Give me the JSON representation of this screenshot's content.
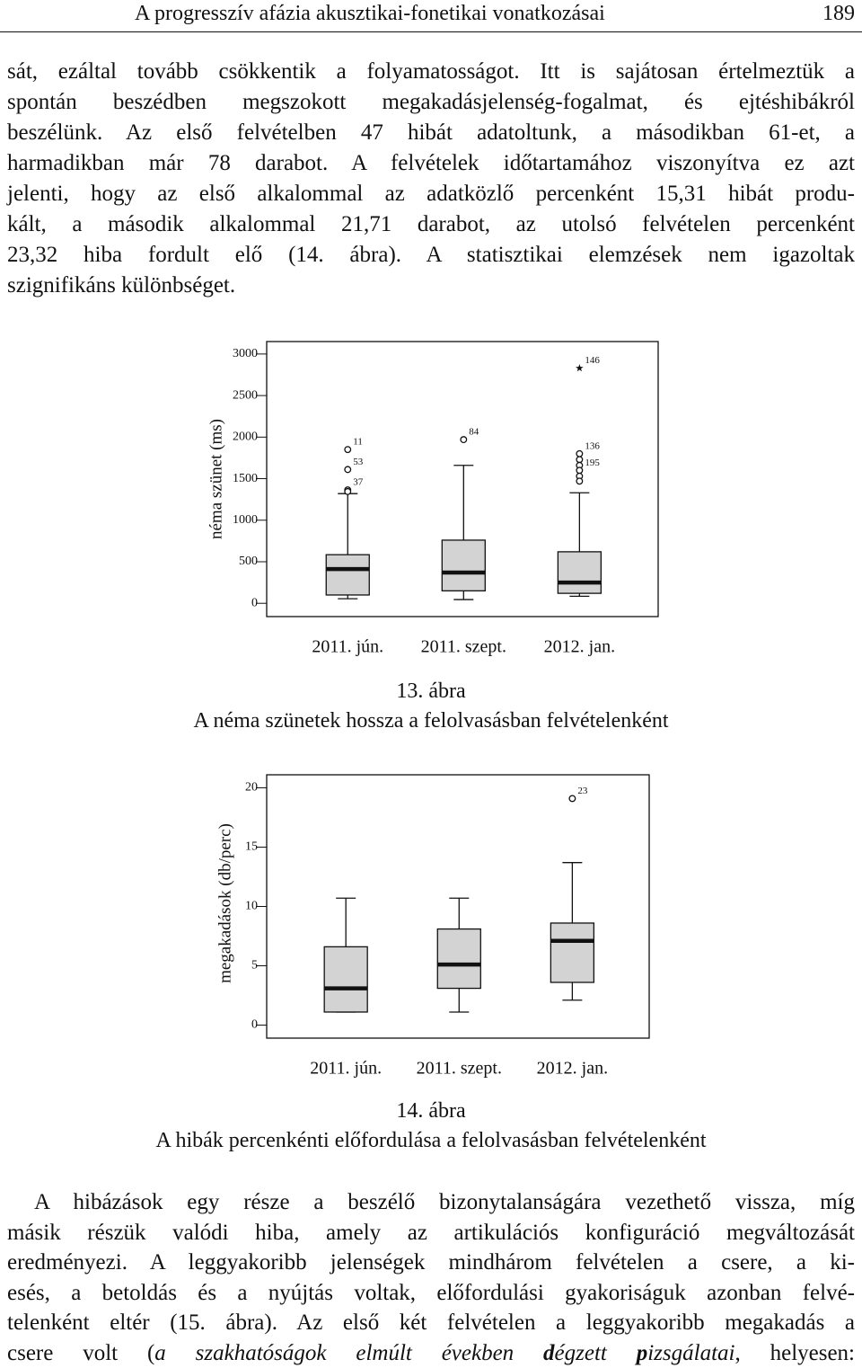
{
  "header": {
    "title": "A progresszív afázia akusztikai-fonetikai vonatkozásai",
    "page": "189"
  },
  "paragraph_1": {
    "lines": [
      "sát, ezáltal tovább csökkentik a folyamatosságot. Itt is sajátosan értelmeztük a",
      "spontán beszédben megszokott megakadásjelenség-fogalmat, és ejtéshibákról",
      "beszélünk. Az első felvételben 47 hibát adatoltunk, a másodikban 61-et, a",
      "harmadikban már 78 darabot. A felvételek időtartamához viszonyítva ez azt",
      "jelenti, hogy az első alkalommal az adatközlő percenként 15,31 hibát produ-",
      "kált, a második alkalommal 21,71 darabot, az utolsó felvételen percenként",
      "23,32 hiba fordult elő (14. ábra). A statisztikai elemzések nem igazoltak",
      "szignifikáns különbséget."
    ]
  },
  "chart_data": [
    {
      "type": "box",
      "figure_label": "13. ábra",
      "title": "A néma szünetek hossza a felolvasásban felvételenként",
      "ylabel": "néma szünet (ms)",
      "categories": [
        "2011. jún.",
        "2011. szept.",
        "2012. jan."
      ],
      "box_color": "#d3d3d3",
      "ylim": [
        -160,
        3150
      ],
      "yticks": [
        0,
        500,
        1000,
        1500,
        2000,
        2500,
        3000
      ],
      "boxes": [
        {
          "min": 55,
          "q1": 100,
          "median": 412,
          "q3": 585,
          "max": 1320,
          "outliers": [
            {
              "value": 1850,
              "label": "11"
            },
            {
              "value": 1610,
              "label": "53"
            },
            {
              "value": 1365,
              "label": "37"
            },
            {
              "value": 1345
            }
          ]
        },
        {
          "min": 45,
          "q1": 150,
          "median": 370,
          "q3": 760,
          "max": 1660,
          "outliers": [
            {
              "value": 1970,
              "label": "84"
            }
          ]
        },
        {
          "min": 85,
          "q1": 120,
          "median": 250,
          "q3": 620,
          "max": 1330,
          "outliers": [
            {
              "value": 2830,
              "label": "146",
              "marker": "star"
            },
            {
              "value": 1800,
              "label": "136"
            },
            {
              "value": 1730
            },
            {
              "value": 1660
            },
            {
              "value": 1600,
              "label": "195"
            },
            {
              "value": 1530
            },
            {
              "value": 1470
            }
          ]
        }
      ]
    },
    {
      "type": "box",
      "figure_label": "14. ábra",
      "title": "A hibák percenkénti előfordulása a felolvasásban felvételenként",
      "ylabel": "megakadások (db/perc)",
      "categories": [
        "2011. jún.",
        "2011. szept.",
        "2012. jan."
      ],
      "box_color": "#d3d3d3",
      "ylim": [
        -1.1,
        21.1
      ],
      "yticks": [
        0,
        5,
        10,
        15,
        20
      ],
      "boxes": [
        {
          "min": 1.1,
          "q1": 1.1,
          "median": 3.1,
          "q3": 6.6,
          "max": 10.7,
          "outliers": []
        },
        {
          "min": 1.1,
          "q1": 3.1,
          "median": 5.1,
          "q3": 8.1,
          "max": 10.7,
          "outliers": []
        },
        {
          "min": 2.1,
          "q1": 3.6,
          "median": 7.1,
          "q3": 8.6,
          "max": 13.7,
          "outliers": [
            {
              "value": 19.1,
              "label": "23"
            }
          ]
        }
      ]
    }
  ],
  "paragraph_2": {
    "lines": [
      "A hibázások egy része a beszélő bizonytalanságára vezethető vissza, míg",
      "másik részük valódi hiba, amely az artikulációs konfiguráció megváltozását",
      "eredményezi. A leggyakoribb jelenségek mindhárom felvételen a csere, a ki-",
      "esés, a betoldás és a nyújtás voltak, előfordulási gyakoriságuk azonban felvé-",
      "telenként eltér (15. ábra). Az első két felvételen a leggyakoribb megakadás a",
      [
        {
          "text": "csere volt ("
        },
        {
          "text": "a szakhatóságok elmúlt években ",
          "style": "italic"
        },
        {
          "text": "d",
          "style": "bold-italic"
        },
        {
          "text": "égzett ",
          "style": "italic"
        },
        {
          "text": "p",
          "style": "bold-italic"
        },
        {
          "text": "izsgálatai",
          "style": "italic"
        },
        {
          "text": ", helyesen:"
        }
      ]
    ]
  }
}
